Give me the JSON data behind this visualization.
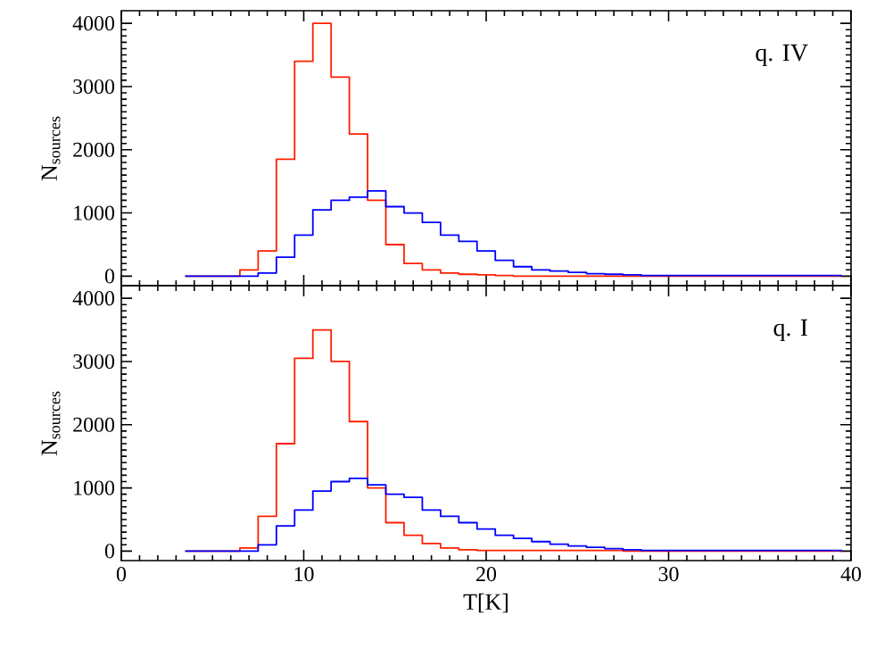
{
  "chart_data": [
    {
      "type": "histogram",
      "bins": [
        3.5,
        4.5,
        5.5,
        6.5,
        7.5,
        8.5,
        9.5,
        10.5,
        11.5,
        12.5,
        13.5,
        14.5,
        15.5,
        16.5,
        17.5,
        18.5,
        19.5,
        20.5,
        21.5,
        22.5,
        23.5,
        24.5,
        25.5,
        26.5,
        27.5,
        28.5,
        29.5,
        30.5,
        31.5,
        32.5,
        33.5,
        34.5,
        35.5,
        36.5,
        37.5,
        38.5,
        39.5
      ],
      "series": [
        {
          "color": "#ff2000",
          "values": [
            0,
            0,
            0,
            100,
            400,
            1850,
            3400,
            4000,
            3150,
            2250,
            1200,
            500,
            200,
            100,
            50,
            30,
            20,
            10,
            0,
            0,
            0,
            0,
            0,
            0,
            0,
            0,
            0,
            0,
            0,
            0,
            0,
            0,
            0,
            0,
            0,
            0
          ]
        },
        {
          "color": "#0000ff",
          "values": [
            0,
            0,
            0,
            0,
            50,
            300,
            650,
            1050,
            1200,
            1250,
            1350,
            1100,
            1000,
            850,
            650,
            550,
            400,
            250,
            150,
            100,
            80,
            60,
            40,
            30,
            20,
            10,
            10,
            10,
            10,
            10,
            10,
            10,
            10,
            10,
            10,
            10
          ]
        }
      ],
      "xlim": [
        0,
        40
      ],
      "xticks": [
        0,
        10,
        20,
        30,
        40
      ],
      "ylim": [
        -150,
        4200
      ],
      "yticks": [
        0,
        1000,
        2000,
        3000,
        4000
      ],
      "ylabel": "N$_{sources}$",
      "annotations": [
        "q. IV"
      ],
      "tick_labels": "y"
    },
    {
      "type": "histogram",
      "bins": [
        3.5,
        4.5,
        5.5,
        6.5,
        7.5,
        8.5,
        9.5,
        10.5,
        11.5,
        12.5,
        13.5,
        14.5,
        15.5,
        16.5,
        17.5,
        18.5,
        19.5,
        20.5,
        21.5,
        22.5,
        23.5,
        24.5,
        25.5,
        26.5,
        27.5,
        28.5,
        29.5,
        30.5,
        31.5,
        32.5,
        33.5,
        34.5,
        35.5,
        36.5,
        37.5,
        38.5,
        39.5
      ],
      "series": [
        {
          "color": "#ff2000",
          "values": [
            0,
            0,
            0,
            50,
            550,
            1700,
            3050,
            3500,
            3000,
            2050,
            1000,
            450,
            250,
            120,
            50,
            20,
            10,
            10,
            10,
            10,
            10,
            10,
            10,
            10,
            0,
            0,
            0,
            0,
            0,
            0,
            0,
            0,
            0,
            0,
            0,
            0
          ]
        },
        {
          "color": "#0000ff",
          "values": [
            0,
            0,
            0,
            0,
            100,
            400,
            650,
            950,
            1100,
            1150,
            1050,
            900,
            850,
            650,
            550,
            450,
            350,
            250,
            200,
            150,
            110,
            80,
            60,
            40,
            20,
            10,
            10,
            10,
            10,
            10,
            10,
            10,
            10,
            10,
            10,
            10
          ]
        }
      ],
      "xlim": [
        0,
        40
      ],
      "xticks": [
        0,
        10,
        20,
        30,
        40
      ],
      "ylim": [
        -150,
        4200
      ],
      "yticks": [
        0,
        1000,
        2000,
        3000,
        4000
      ],
      "ylabel": "N$_{sources}$",
      "xlabel": "T[K]",
      "annotations": [
        "q. I"
      ]
    }
  ]
}
